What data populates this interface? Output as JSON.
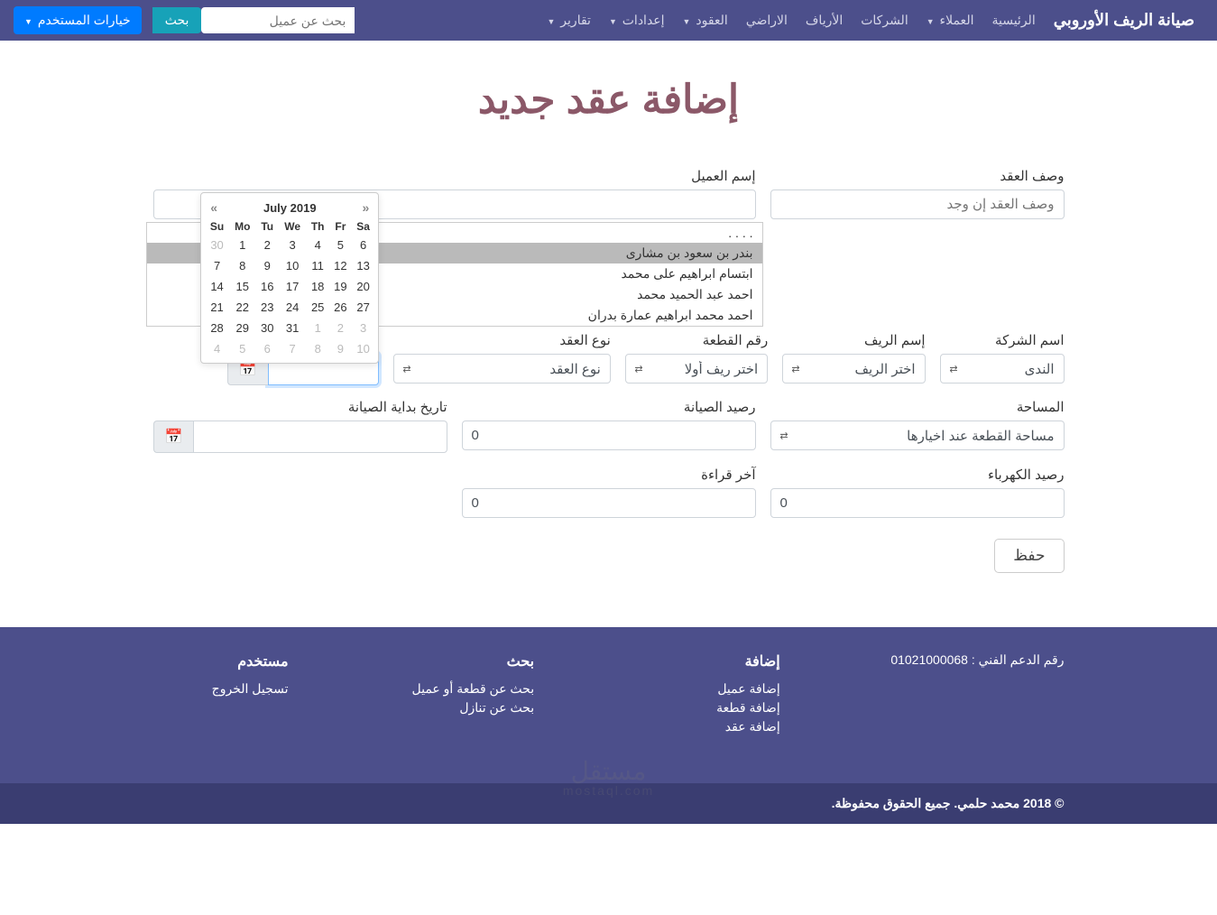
{
  "nav": {
    "brand": "صيانة الريف الأوروبي",
    "links": [
      {
        "label": "الرئيسية",
        "dropdown": false
      },
      {
        "label": "العملاء",
        "dropdown": true
      },
      {
        "label": "الشركات",
        "dropdown": false
      },
      {
        "label": "الأرياف",
        "dropdown": false
      },
      {
        "label": "الاراضي",
        "dropdown": false
      },
      {
        "label": "العقود",
        "dropdown": true
      },
      {
        "label": "إعدادات",
        "dropdown": true
      },
      {
        "label": "تقارير",
        "dropdown": true
      }
    ],
    "search_placeholder": "بحث عن عميل",
    "search_btn": "بحث",
    "user_btn": "خيارات المستخدم"
  },
  "page": {
    "title": "إضافة عقد جديد"
  },
  "form": {
    "contract_desc": {
      "label": "وصف العقد",
      "placeholder": "وصف العقد إن وجد"
    },
    "client_name": {
      "label": "إسم العميل"
    },
    "client_options": [
      ". . . .",
      "بندر بن سعود بن مشارى",
      "ابتسام ابراهيم على محمد",
      "احمد عبد الحميد محمد",
      "احمد محمد ابراهيم عمارة بدران"
    ],
    "company": {
      "label": "اسم الشركة",
      "value": "الندى"
    },
    "reef": {
      "label": "إسم الريف",
      "value": "اختر الريف"
    },
    "plot_no": {
      "label": "رقم القطعة",
      "value": "اختر ريف أولا"
    },
    "contract_type": {
      "label": "نوع العقد",
      "value": "نوع العقد"
    },
    "date_start": {
      "label": ""
    },
    "area": {
      "label": "المساحة",
      "value": "مساحة القطعة عند اخيارها"
    },
    "maint_balance": {
      "label": "رصيد الصيانة",
      "value": "0"
    },
    "maint_start": {
      "label": "تاريخ بداية الصيانة"
    },
    "elec_balance": {
      "label": "رصيد الكهرباء",
      "value": "0"
    },
    "last_reading": {
      "label": "آخر قراءة",
      "value": "0"
    },
    "save": "حفظ"
  },
  "datepicker": {
    "title": "July 2019",
    "days": [
      "Su",
      "Mo",
      "Tu",
      "We",
      "Th",
      "Fr",
      "Sa"
    ],
    "weeks": [
      [
        {
          "d": 30,
          "m": true
        },
        {
          "d": 1
        },
        {
          "d": 2
        },
        {
          "d": 3
        },
        {
          "d": 4
        },
        {
          "d": 5
        },
        {
          "d": 6
        }
      ],
      [
        {
          "d": 7
        },
        {
          "d": 8
        },
        {
          "d": 9
        },
        {
          "d": 10
        },
        {
          "d": 11
        },
        {
          "d": 12
        },
        {
          "d": 13
        }
      ],
      [
        {
          "d": 14
        },
        {
          "d": 15
        },
        {
          "d": 16
        },
        {
          "d": 17
        },
        {
          "d": 18
        },
        {
          "d": 19
        },
        {
          "d": 20
        }
      ],
      [
        {
          "d": 21
        },
        {
          "d": 22
        },
        {
          "d": 23
        },
        {
          "d": 24
        },
        {
          "d": 25
        },
        {
          "d": 26
        },
        {
          "d": 27
        }
      ],
      [
        {
          "d": 28
        },
        {
          "d": 29
        },
        {
          "d": 30
        },
        {
          "d": 31
        },
        {
          "d": 1,
          "m": true
        },
        {
          "d": 2,
          "m": true
        },
        {
          "d": 3,
          "m": true
        }
      ],
      [
        {
          "d": 4,
          "m": true
        },
        {
          "d": 5,
          "m": true
        },
        {
          "d": 6,
          "m": true
        },
        {
          "d": 7,
          "m": true
        },
        {
          "d": 8,
          "m": true
        },
        {
          "d": 9,
          "m": true
        },
        {
          "d": 10,
          "m": true
        }
      ]
    ]
  },
  "footer": {
    "support": "رقم الدعم الفني : 01021000068",
    "add": {
      "title": "إضافة",
      "links": [
        "إضافة عميل",
        "إضافة قطعة",
        "إضافة عقد"
      ]
    },
    "search": {
      "title": "بحث",
      "links": [
        "بحث عن قطعة أو عميل",
        "بحث عن تنازل"
      ]
    },
    "user": {
      "title": "مستخدم",
      "links": [
        "تسجيل الخروج"
      ]
    },
    "copyright": "© 2018 محمد حلمي. جميع الحقوق محفوظة."
  },
  "watermark": {
    "main": "مستقل",
    "sub": "mostaql.com"
  },
  "colors": {
    "nav_bg": "#4c4f8b",
    "title": "#8b5868",
    "search_btn": "#17a2b8",
    "user_btn": "#007bff"
  }
}
